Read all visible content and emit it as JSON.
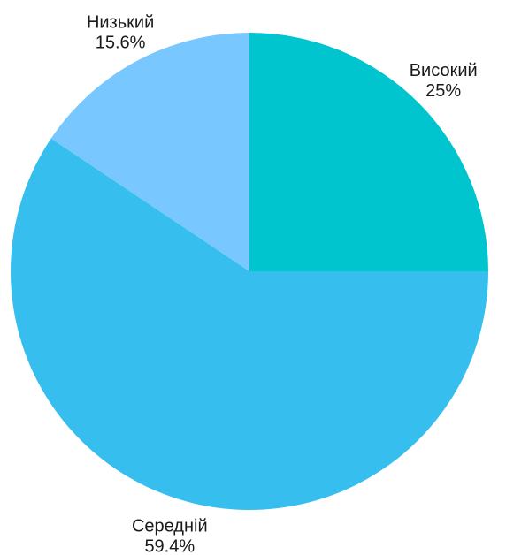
{
  "chart_data": {
    "type": "pie",
    "title": "",
    "slices": [
      {
        "label": "Високий",
        "value": 25,
        "percent_label": "25%",
        "color": "#00C5CE"
      },
      {
        "label": "Середній",
        "value": 59.4,
        "percent_label": "59.4%",
        "color": "#36BEEF"
      },
      {
        "label": "Низький",
        "value": 15.6,
        "percent_label": "15.6%",
        "color": "#78C7FF"
      }
    ],
    "start_angle_deg": 0,
    "direction": "clockwise-from-top",
    "legend": "none"
  }
}
